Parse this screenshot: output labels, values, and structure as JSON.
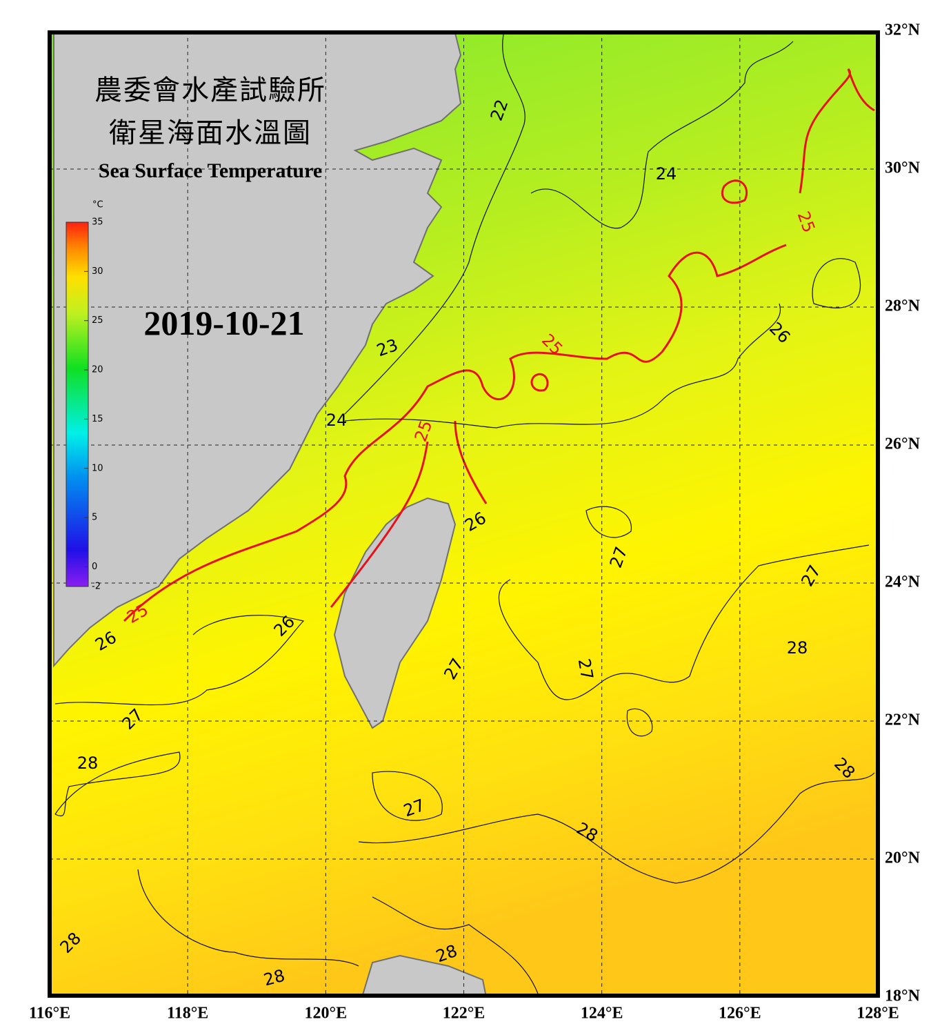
{
  "header": {
    "title_lines": [
      "農委會水產試驗所",
      "衛星海面水溫圖"
    ],
    "subtitle": "Sea Surface Temperature",
    "date": "2019-10-21"
  },
  "colorbar": {
    "unit": "°C",
    "range": [
      -2,
      35
    ],
    "ticks": [
      35,
      30,
      25,
      20,
      15,
      10,
      5,
      0,
      -2
    ]
  },
  "map": {
    "lon_range": [
      116,
      128
    ],
    "lat_range": [
      18,
      32
    ],
    "lon_ticks": [
      {
        "value": 116,
        "label": "116°E"
      },
      {
        "value": 118,
        "label": "118°E"
      },
      {
        "value": 120,
        "label": "120°E"
      },
      {
        "value": 122,
        "label": "122°E"
      },
      {
        "value": 124,
        "label": "124°E"
      },
      {
        "value": 126,
        "label": "126°E"
      },
      {
        "value": 128,
        "label": "128°E"
      }
    ],
    "lat_ticks": [
      {
        "value": 32,
        "label": "32°N"
      },
      {
        "value": 30,
        "label": "30°N"
      },
      {
        "value": 28,
        "label": "28°N"
      },
      {
        "value": 26,
        "label": "26°N"
      },
      {
        "value": 24,
        "label": "24°N"
      },
      {
        "value": 22,
        "label": "22°N"
      },
      {
        "value": 20,
        "label": "20°N"
      },
      {
        "value": 18,
        "label": "18°N"
      }
    ],
    "contour_labels": [
      22,
      24,
      25,
      26,
      25,
      23,
      24,
      25,
      26,
      27,
      27,
      26,
      26,
      25,
      27,
      27,
      28,
      27,
      28,
      28,
      27,
      28,
      28,
      28,
      28
    ]
  }
}
